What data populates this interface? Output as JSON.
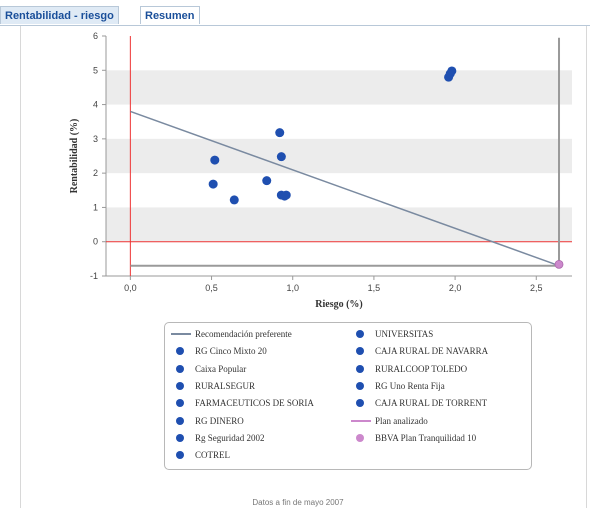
{
  "tabs": {
    "active_label": "Rentabilidad - riesgo",
    "inactive_label": "Resumen"
  },
  "footer_text": "Datos a fin de mayo 2007",
  "colors": {
    "fund_point": "#1f4fb0",
    "plan_point": "#cc88cc",
    "recommendation_line": "#7a8aa0",
    "zero_line": "#ee3333",
    "grid_band": "#ececec",
    "analyzed_marker": "#9a9a9a"
  },
  "chart_data": {
    "type": "scatter",
    "xlabel": "Riesgo (%)",
    "ylabel": "Rentabilidad (%)",
    "xlim": [
      -0.15,
      2.72
    ],
    "ylim": [
      -1,
      6
    ],
    "x_ticks": [
      "0,0",
      "0,5",
      "1,0",
      "1,5",
      "2,0",
      "2,5"
    ],
    "x_tick_values": [
      0,
      0.5,
      1.0,
      1.5,
      2.0,
      2.5
    ],
    "y_ticks": [
      "-1",
      "0",
      "1",
      "2",
      "3",
      "4",
      "5",
      "6"
    ],
    "y_tick_values": [
      -1,
      0,
      1,
      2,
      3,
      4,
      5,
      6
    ],
    "grid": "horizontal bands",
    "legend_position": "bottom",
    "recommendation_line": {
      "name": "Recomendación preferente",
      "x": [
        0,
        2.64
      ],
      "y": [
        3.8,
        -0.7
      ]
    },
    "analyzed_plan_line": {
      "name": "Plan analizado",
      "x": [
        2.64,
        2.64
      ],
      "y": [
        -0.7,
        5.95
      ]
    },
    "funds": [
      {
        "name": "RG Cinco Mixto 20",
        "x": 0.52,
        "y": 2.38
      },
      {
        "name": "Caixa Popular",
        "x": 0.51,
        "y": 1.68
      },
      {
        "name": "RURALSEGUR",
        "x": 0.64,
        "y": 1.22
      },
      {
        "name": "FARMACEUTICOS DE SORIA",
        "x": 0.84,
        "y": 1.78
      },
      {
        "name": "RG DINERO",
        "x": 0.92,
        "y": 3.18
      },
      {
        "name": "Rg Seguridad 2002",
        "x": 0.93,
        "y": 2.48
      },
      {
        "name": "COTREL",
        "x": 0.93,
        "y": 1.36
      },
      {
        "name": "UNIVERSITAS",
        "x": 0.95,
        "y": 1.33
      },
      {
        "name": "CAJA RURAL DE NAVARRA",
        "x": 0.96,
        "y": 1.36
      },
      {
        "name": "RURALCOOP TOLEDO",
        "x": 1.96,
        "y": 4.8
      },
      {
        "name": "RG Uno Renta Fija",
        "x": 1.97,
        "y": 4.9
      },
      {
        "name": "CAJA RURAL DE TORRENT",
        "x": 1.98,
        "y": 4.98
      }
    ],
    "plan": {
      "name": "BBVA Plan Tranquilidad 10",
      "x": 2.64,
      "y": -0.66
    }
  },
  "legend": {
    "left": [
      {
        "type": "line",
        "label": "Recomendación preferente"
      },
      {
        "type": "dot",
        "label": "RG Cinco Mixto 20"
      },
      {
        "type": "dot",
        "label": "Caixa Popular"
      },
      {
        "type": "dot",
        "label": "RURALSEGUR"
      },
      {
        "type": "dot",
        "label": "FARMACEUTICOS DE SORIA"
      },
      {
        "type": "dot",
        "label": "RG DINERO"
      },
      {
        "type": "dot",
        "label": "Rg Seguridad 2002"
      },
      {
        "type": "dot",
        "label": "COTREL"
      }
    ],
    "right": [
      {
        "type": "dot",
        "label": "UNIVERSITAS"
      },
      {
        "type": "dot",
        "label": "CAJA RURAL DE NAVARRA"
      },
      {
        "type": "dot",
        "label": "RURALCOOP TOLEDO"
      },
      {
        "type": "dot",
        "label": "RG Uno Renta Fija"
      },
      {
        "type": "dot",
        "label": "CAJA RURAL DE TORRENT"
      },
      {
        "type": "plan-line",
        "label": "Plan analizado"
      },
      {
        "type": "plan-dot",
        "label": "BBVA Plan Tranquilidad 10"
      }
    ]
  }
}
